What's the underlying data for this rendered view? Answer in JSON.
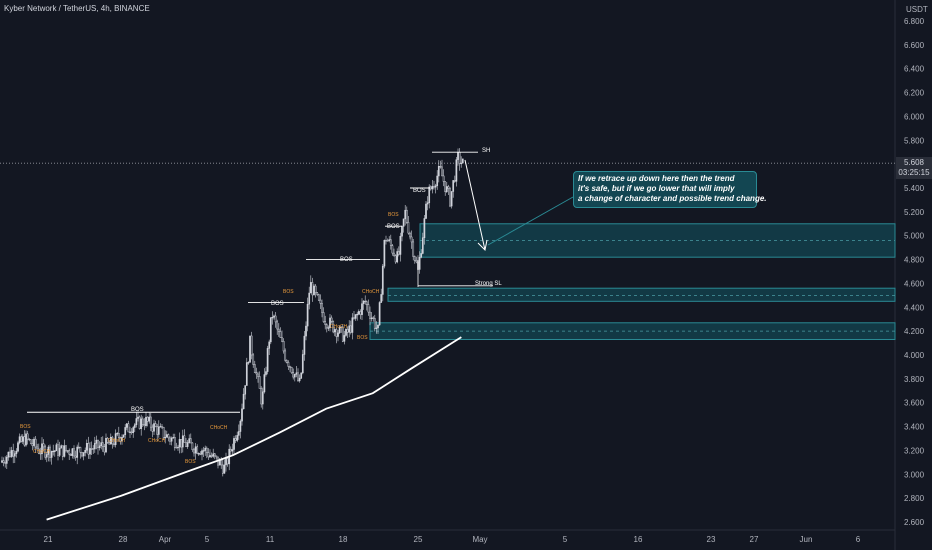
{
  "header": {
    "title": "Kyber Network / TetherUS, 4h, BINANCE",
    "currency": "USDT"
  },
  "price_tag": {
    "price": "5.608",
    "countdown": "03:25:15"
  },
  "note": {
    "lines": [
      "If we retrace up down here then the trend",
      "it's safe, but if we go lower that will  imply",
      "a change of character and possible trend change."
    ]
  },
  "labels": {
    "sh": "SH",
    "strong_sl": "Strong SL",
    "bos": "BOS",
    "choch": "CHoCH"
  },
  "colors": {
    "background": "#131722",
    "up": "#d1d4dc",
    "down": "#d1d4dc",
    "zone_fill": "#134652",
    "zone_border": "#2a8a94",
    "ma_line": "#ffffff",
    "structure": "#ffffff",
    "bos_small": "#e89a3c"
  },
  "chart_data": {
    "type": "candlestick",
    "title": "Kyber Network / TetherUS, 4h, BINANCE",
    "y_axis": {
      "unit": "USDT",
      "range": [
        2.6,
        6.8
      ],
      "ticks": [
        "6.800",
        "6.600",
        "6.400",
        "6.200",
        "6.000",
        "5.800",
        "5.600",
        "5.400",
        "5.200",
        "5.000",
        "4.800",
        "4.600",
        "4.400",
        "4.200",
        "4.000",
        "3.800",
        "3.600",
        "3.400",
        "3.200",
        "3.000",
        "2.800",
        "2.600"
      ]
    },
    "x_axis": {
      "ticks": [
        "21",
        "28",
        "Apr",
        "5",
        "11",
        "18",
        "25",
        "May",
        "5",
        "16",
        "23",
        "27",
        "Jun",
        "6"
      ]
    },
    "last_price": 5.608,
    "series": [
      {
        "type": "moving_average",
        "points": [
          [
            0.05,
            2.62
          ],
          [
            0.13,
            2.82
          ],
          [
            0.2,
            3.02
          ],
          [
            0.25,
            3.16
          ],
          [
            0.3,
            3.35
          ],
          [
            0.35,
            3.55
          ],
          [
            0.4,
            3.68
          ],
          [
            0.44,
            3.88
          ],
          [
            0.495,
            4.15
          ]
        ]
      }
    ],
    "zones": [
      {
        "top": 5.1,
        "bottom": 4.82,
        "mid": 4.96
      },
      {
        "top": 4.56,
        "bottom": 4.45,
        "mid": 4.5
      },
      {
        "top": 4.27,
        "bottom": 4.13,
        "mid": 4.2
      }
    ],
    "levels": [
      {
        "label": "SH",
        "price": 5.7
      },
      {
        "label": "Strong SL",
        "price": 4.58
      },
      {
        "label": "BOS",
        "price": 3.52
      },
      {
        "label": "BOS",
        "price": 4.44
      },
      {
        "label": "BOS",
        "price": 4.8
      },
      {
        "label": "BOS",
        "price": 5.08
      },
      {
        "label": "BOS",
        "price": 5.4
      }
    ]
  }
}
